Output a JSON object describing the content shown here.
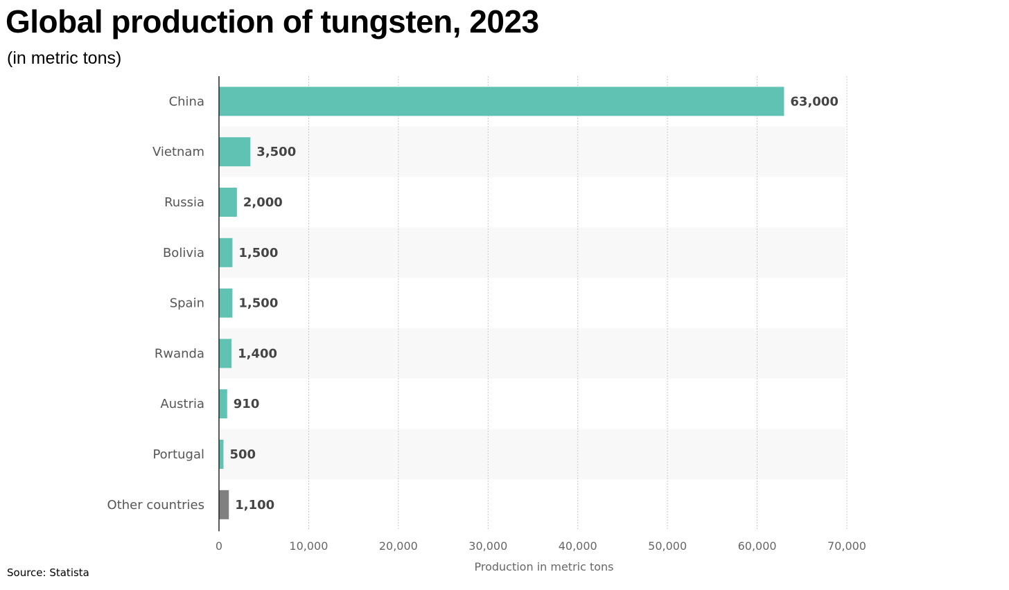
{
  "title": "Global production of tungsten, 2023",
  "subtitle": "(in metric tons)",
  "source": "Source: Statista",
  "colors": {
    "bar": "#5fc2b3",
    "other_bar": "#808080",
    "band": "#f8f8f8",
    "grid": "#c8c8c8"
  },
  "chart_data": {
    "type": "bar",
    "orientation": "horizontal",
    "categories": [
      "China",
      "Vietnam",
      "Russia",
      "Bolivia",
      "Spain",
      "Rwanda",
      "Austria",
      "Portugal",
      "Other countries"
    ],
    "values": [
      63000,
      3500,
      2000,
      1500,
      1500,
      1400,
      910,
      500,
      1100
    ],
    "value_labels": [
      "63,000",
      "3,500",
      "2,000",
      "1,500",
      "1,500",
      "1,400",
      "910",
      "500",
      "1,100"
    ],
    "xlabel": "Production in metric tons",
    "ylabel": "",
    "xlim": [
      0,
      70000
    ],
    "ticks": [
      0,
      10000,
      20000,
      30000,
      40000,
      50000,
      60000,
      70000
    ],
    "tick_labels": [
      "0",
      "10,000",
      "20,000",
      "30,000",
      "40,000",
      "50,000",
      "60,000",
      "70,000"
    ],
    "grid": true,
    "legend": "none"
  }
}
